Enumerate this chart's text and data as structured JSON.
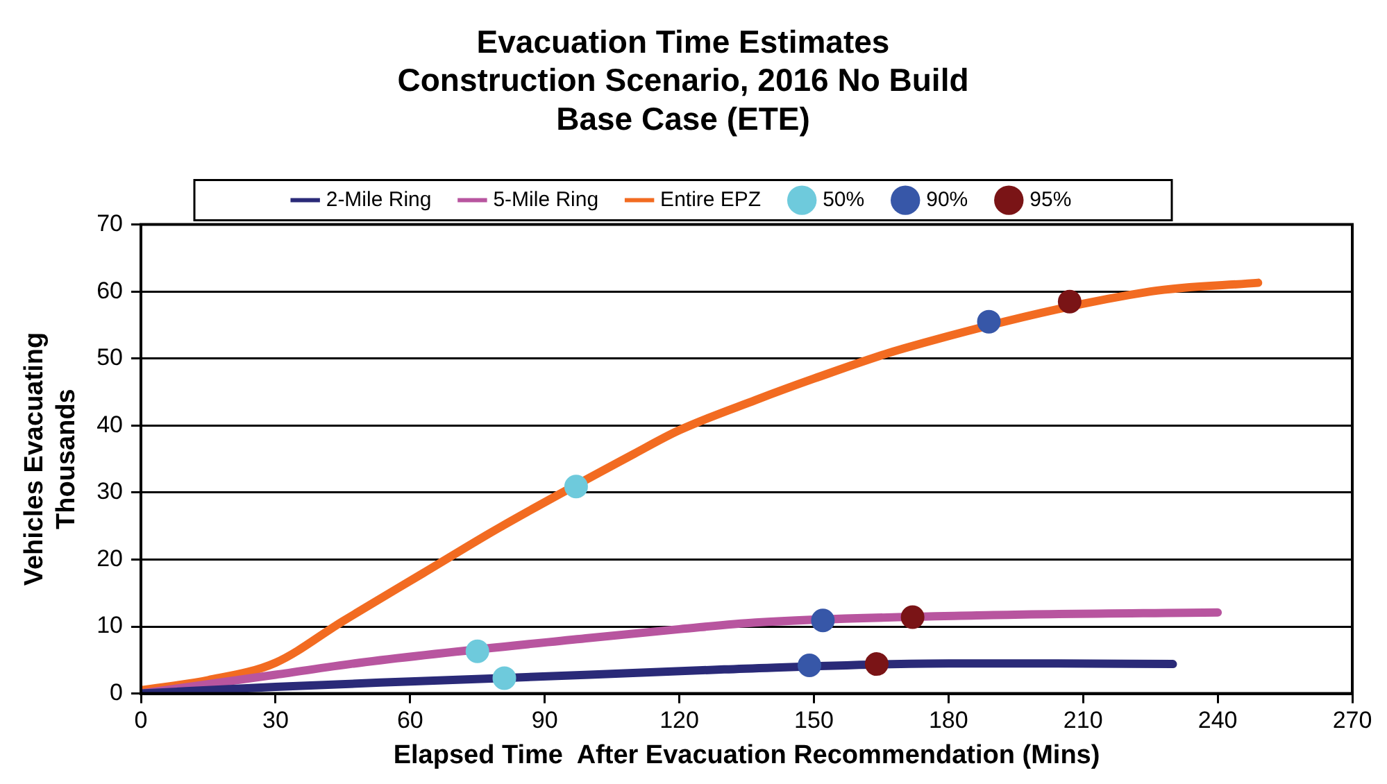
{
  "chart_data": {
    "type": "line",
    "title": "Evacuation Time Estimates\nConstruction Scenario, 2016 No Build\nBase Case (ETE)",
    "xlabel": "Elapsed Time  After Evacuation Recommendation (Mins)",
    "ylabel": "Vehicles Evacuating\nThousands",
    "xlim": [
      0,
      270
    ],
    "xticks": [
      0,
      30,
      60,
      90,
      120,
      150,
      180,
      210,
      240,
      270
    ],
    "ylim": [
      0,
      70
    ],
    "yticks": [
      0,
      10,
      20,
      30,
      40,
      50,
      60,
      70
    ],
    "grid": "y",
    "legend": "top",
    "marker": "none",
    "line_style": "solid",
    "series": [
      {
        "name": "2-Mile Ring",
        "color": "#2a2a78",
        "x": [
          0,
          30,
          60,
          100,
          130,
          180,
          200,
          230
        ],
        "values": [
          0,
          1,
          1.8,
          2.8,
          3.6,
          4.5,
          4.5,
          4.4
        ]
      },
      {
        "name": "5-Mile Ring",
        "color": "#b8559f",
        "x": [
          0,
          30,
          50,
          100,
          120,
          137,
          190,
          240
        ],
        "values": [
          0,
          2.8,
          4.7,
          8.3,
          9.6,
          10.6,
          11.7,
          12.1
        ]
      },
      {
        "name": "Entire EPZ",
        "color": "#f26b21",
        "x": [
          0,
          15,
          30,
          45,
          63,
          80,
          110,
          120,
          137,
          150,
          170,
          225,
          249
        ],
        "values": [
          0.5,
          2,
          4.6,
          10.8,
          18,
          24.8,
          35.8,
          39.3,
          43.8,
          47,
          51.5,
          60,
          61.3
        ]
      },
      {
        "name": "50%",
        "type": "scatter",
        "marker": "circle",
        "color": "#6ecadc",
        "x": [
          81,
          75,
          97
        ],
        "values": [
          2.3,
          6.3,
          30.9
        ]
      },
      {
        "name": "90%",
        "type": "scatter",
        "marker": "circle",
        "color": "#3757a8",
        "x": [
          149,
          152,
          189
        ],
        "values": [
          4.2,
          10.9,
          55.5
        ]
      },
      {
        "name": "95%",
        "type": "scatter",
        "marker": "circle",
        "color": "#7a1416",
        "x": [
          164,
          172,
          207
        ],
        "values": [
          4.4,
          11.4,
          58.5
        ]
      }
    ]
  }
}
